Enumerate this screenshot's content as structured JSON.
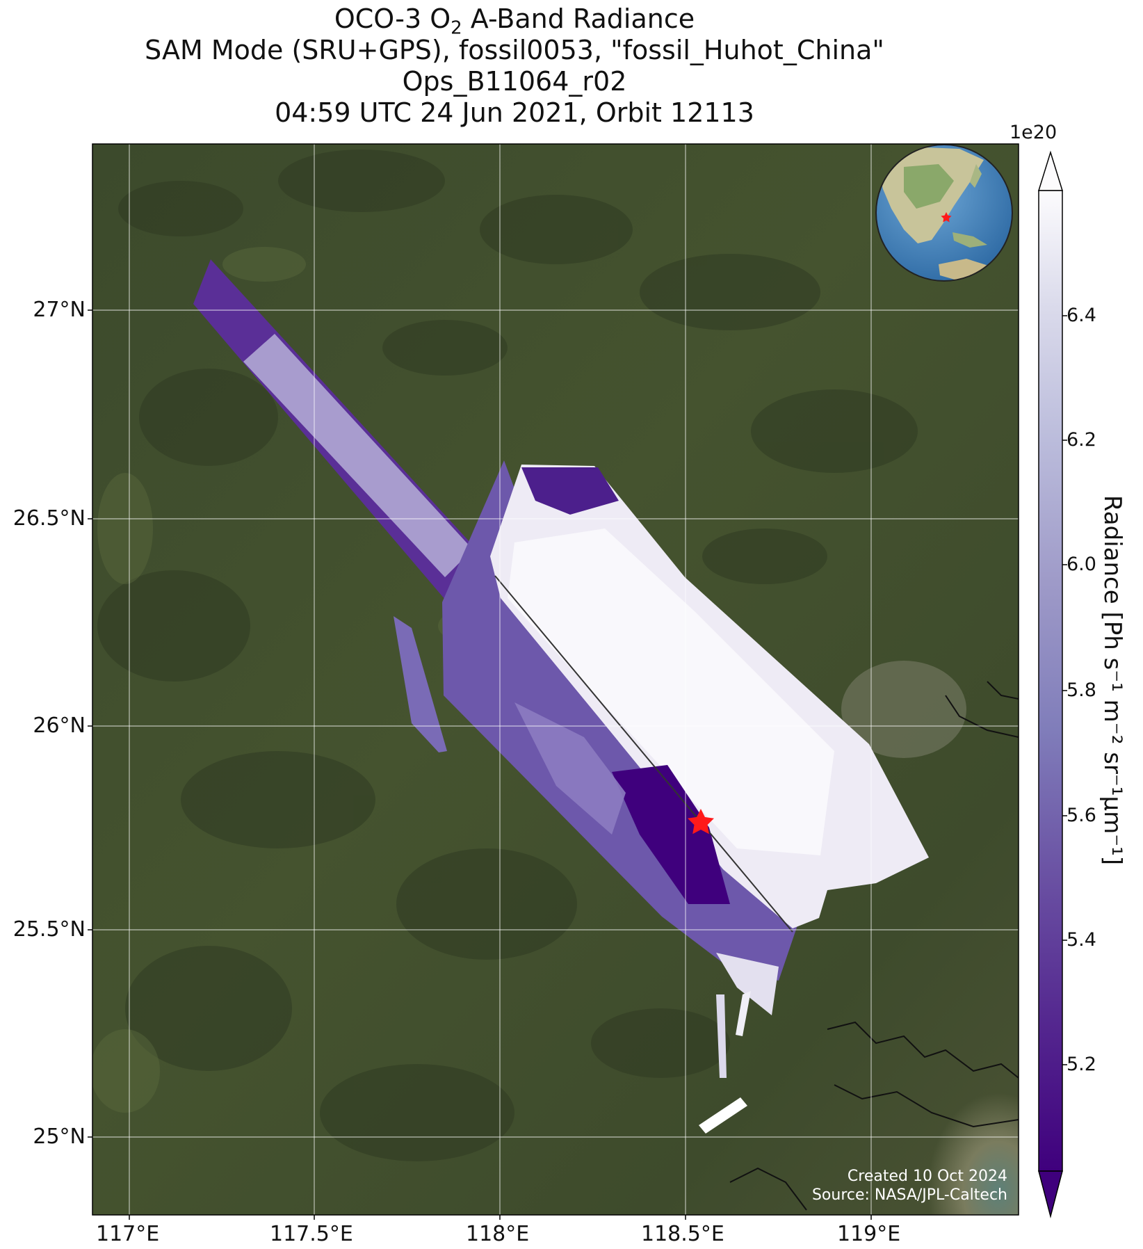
{
  "title": {
    "line1_pre": "OCO-3 O",
    "line1_sub": "2",
    "line1_post": " A-Band Radiance",
    "line2": "SAM Mode (SRU+GPS), fossil0053, \"fossil_Huhot_China\"",
    "line3": "Ops_B11064_r02",
    "line4": "04:59 UTC 24 Jun 2021, Orbit 12113"
  },
  "map": {
    "lon_range": [
      116.88,
      119.38
    ],
    "lat_range": [
      24.8,
      27.45
    ],
    "x_ticks": [
      "117°E",
      "117.5°E",
      "118°E",
      "118.5°E",
      "119°E"
    ],
    "x_tick_values": [
      117.0,
      117.5,
      118.0,
      118.5,
      119.0
    ],
    "y_ticks": [
      "27°N",
      "26.5°N",
      "26°N",
      "25.5°N",
      "25°N"
    ],
    "y_tick_values": [
      27.0,
      26.5,
      26.0,
      25.5,
      25.0
    ],
    "grid": true,
    "background": "satellite imagery",
    "target_marker": {
      "lon": 118.54,
      "lat": 25.76,
      "color": "#ff1a1a",
      "shape": "star"
    },
    "inset_globe": {
      "position": "top-right",
      "marker_color": "#ff1a1a"
    }
  },
  "colorbar": {
    "label": "Radiance [Ph s⁻¹ m⁻² sr⁻¹μm⁻¹]",
    "scale_label": "1e20",
    "colormap": "Purples_r",
    "range": [
      5.0,
      6.6
    ],
    "ticks": [
      "5.2",
      "5.4",
      "5.6",
      "5.8",
      "6.0",
      "6.2",
      "6.4"
    ],
    "tick_values": [
      5.2,
      5.4,
      5.6,
      5.8,
      6.0,
      6.2,
      6.4
    ],
    "extend": "both",
    "color_low": "#3f007d",
    "color_high": "#fcfbfd"
  },
  "footer": {
    "created": "Created 10 Oct 2024",
    "source": "Source: NASA/JPL-Caltech"
  }
}
